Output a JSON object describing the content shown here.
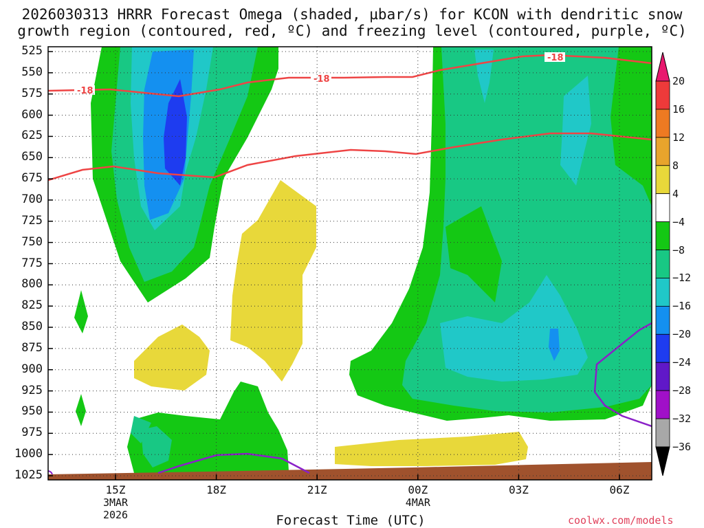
{
  "title_line1": "2026030313 HRRR Forecast Omega (shaded, µbar/s) for KCON with dendritic snow",
  "title_line2": "growth region (contoured, red, ºC) and freezing level (contoured, purple, ºC)",
  "x_axis_title": "Forecast Time (UTC)",
  "credit": "coolwx.com/models",
  "chart_data": {
    "type": "time-height contour",
    "y_ticks": [
      "525",
      "550",
      "575",
      "600",
      "625",
      "650",
      "675",
      "700",
      "725",
      "750",
      "775",
      "800",
      "825",
      "850",
      "875",
      "900",
      "925",
      "950",
      "975",
      "1000",
      "1025"
    ],
    "y_range_mb": [
      525,
      1025
    ],
    "x_ticks": [
      {
        "hour": "15Z",
        "date": "3MAR",
        "year": "2026"
      },
      {
        "hour": "18Z",
        "date": "",
        "year": ""
      },
      {
        "hour": "21Z",
        "date": "",
        "year": ""
      },
      {
        "hour": "00Z",
        "date": "4MAR",
        "year": ""
      },
      {
        "hour": "03Z",
        "date": "",
        "year": ""
      },
      {
        "hour": "06Z",
        "date": "",
        "year": ""
      }
    ],
    "grid": "dotted",
    "colorbar": {
      "labels": [
        "20",
        "16",
        "12",
        "8",
        "4",
        "−4",
        "−8",
        "−12",
        "−16",
        "−20",
        "−24",
        "−28",
        "−32",
        "−36"
      ],
      "colors": [
        "#e8186e",
        "#ee3a3a",
        "#ee7a22",
        "#e8a42c",
        "#e8d83a",
        "#ffffff",
        "#14c814",
        "#18c884",
        "#20c8c8",
        "#1490f0",
        "#1e3cf0",
        "#6018c8",
        "#a010c8",
        "#a8a8a8",
        "#000000"
      ]
    },
    "contour_labels": [
      "-18",
      "-18",
      "-18"
    ],
    "shading_colors": {
      "green": "#14c814",
      "teal": "#18c884",
      "cyan": "#20c8c8",
      "blue": "#1490f0",
      "darkblue": "#1e3cf0",
      "yellow": "#e8d83a",
      "terrain": "#a0522d",
      "dgz_line": "#ee4444",
      "freezing_line": "#8a20c8"
    }
  }
}
